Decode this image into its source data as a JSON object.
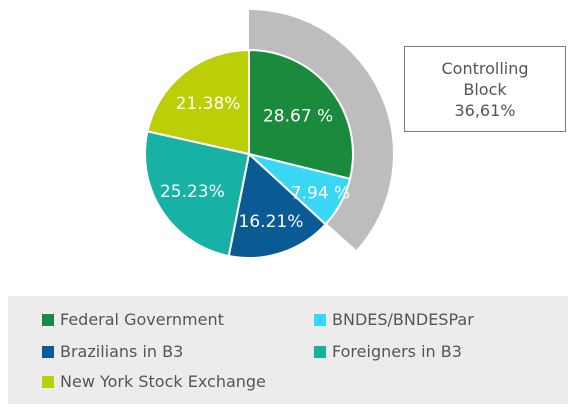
{
  "chart_data": {
    "type": "pie",
    "slices": [
      {
        "name": "Federal Government",
        "value": 28.67,
        "label": "28.67 %",
        "color": "#1a8a3c"
      },
      {
        "name": "BNDES/BNDESPar",
        "value": 7.94,
        "label": "7.94 %",
        "color": "#3ad6f5"
      },
      {
        "name": "Brazilians in B3",
        "value": 16.21,
        "label": "16.21%",
        "color": "#0a5a94"
      },
      {
        "name": "Foreigners in B3",
        "value": 25.23,
        "label": "25.23%",
        "color": "#17b1a6"
      },
      {
        "name": "New York Stock Exchange",
        "value": 21.38,
        "label": "21.38%",
        "color": "#bccf06"
      }
    ],
    "annotation": {
      "lines": [
        "Controlling",
        "Block",
        "36,61%"
      ],
      "value": 36.61,
      "color": "#bdbdbd"
    },
    "legend": {
      "rows": [
        [
          {
            "label": "Federal Government",
            "color": "#1a8a3c"
          },
          {
            "label": "BNDES/BNDESPar",
            "color": "#3ad6f5"
          }
        ],
        [
          {
            "label": "Brazilians in B3",
            "color": "#0a5a94"
          },
          {
            "label": "Foreigners in B3",
            "color": "#17b1a6"
          }
        ],
        [
          {
            "label": "New York Stock Exchange",
            "color": "#bccf06"
          }
        ]
      ]
    }
  }
}
